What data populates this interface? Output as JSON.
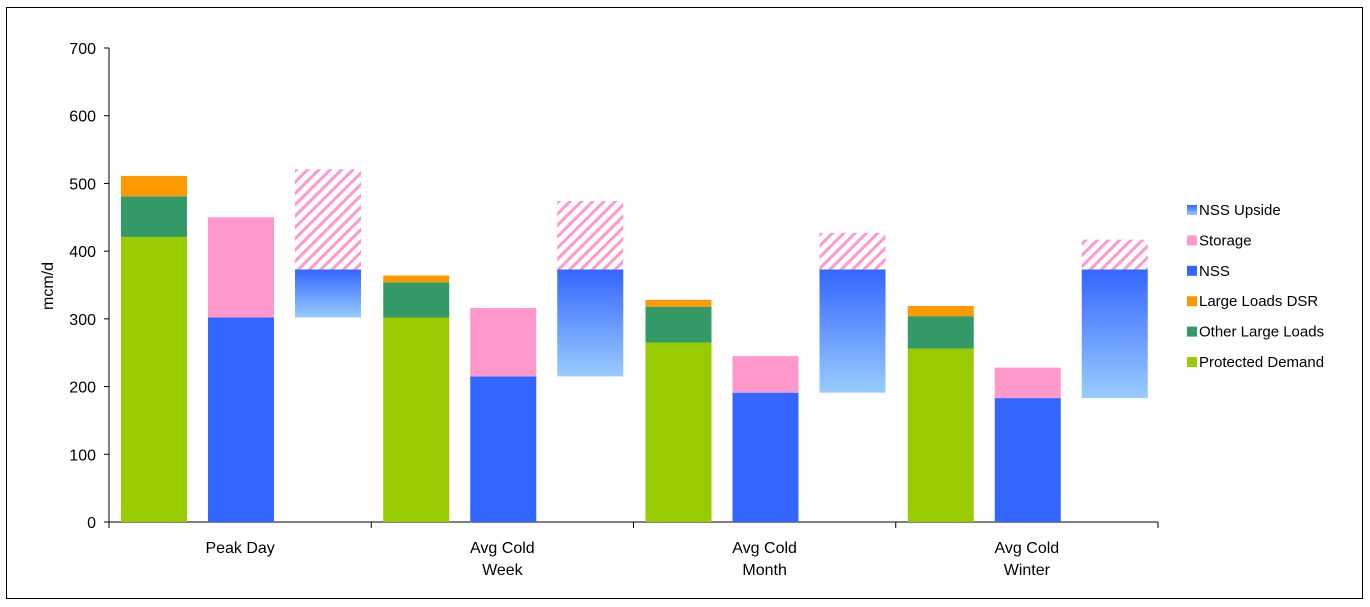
{
  "chart_data": {
    "type": "bar",
    "ylabel": "mcm/d",
    "ylim": [
      0,
      700
    ],
    "yticks": [
      0,
      100,
      200,
      300,
      400,
      500,
      600,
      700
    ],
    "grid": false,
    "legend_position": "right",
    "groups": [
      {
        "label_lines": [
          "Peak Day"
        ],
        "demand": {
          "Protected Demand": 421,
          "Other Large Loads": 60,
          "Large Loads DSR": 30
        },
        "supply": {
          "NSS": 302,
          "Storage": 148
        },
        "upside": {
          "NSS Upside base": 302,
          "NSS Upside": 71,
          "Storage": 148
        }
      },
      {
        "label_lines": [
          "Avg Cold",
          "Week"
        ],
        "demand": {
          "Protected Demand": 302,
          "Other Large Loads": 52,
          "Large Loads DSR": 10
        },
        "supply": {
          "NSS": 215,
          "Storage": 101
        },
        "upside": {
          "NSS Upside base": 215,
          "NSS Upside": 158,
          "Storage": 101
        }
      },
      {
        "label_lines": [
          "Avg Cold",
          "Month"
        ],
        "demand": {
          "Protected Demand": 265,
          "Other Large Loads": 53,
          "Large Loads DSR": 10
        },
        "supply": {
          "NSS": 191,
          "Storage": 54
        },
        "upside": {
          "NSS Upside base": 191,
          "NSS Upside": 182,
          "Storage": 54
        }
      },
      {
        "label_lines": [
          "Avg Cold",
          "Winter"
        ],
        "demand": {
          "Protected Demand": 256,
          "Other Large Loads": 48,
          "Large Loads DSR": 15
        },
        "supply": {
          "NSS": 183,
          "Storage": 45
        },
        "upside": {
          "NSS Upside base": 183,
          "NSS Upside": 190,
          "Storage": 44
        }
      }
    ],
    "legend": [
      "NSS Upside",
      "Storage",
      "NSS",
      "Large Loads DSR",
      "Other Large Loads",
      "Protected Demand"
    ],
    "colors": {
      "Protected Demand": "#99cc00",
      "Other Large Loads": "#339966",
      "Large Loads DSR": "#ff9900",
      "NSS": "#3366ff",
      "Storage": "#ff99cc",
      "NSS Upside top": "#3366ff",
      "NSS Upside bottom": "#99ccff"
    }
  }
}
